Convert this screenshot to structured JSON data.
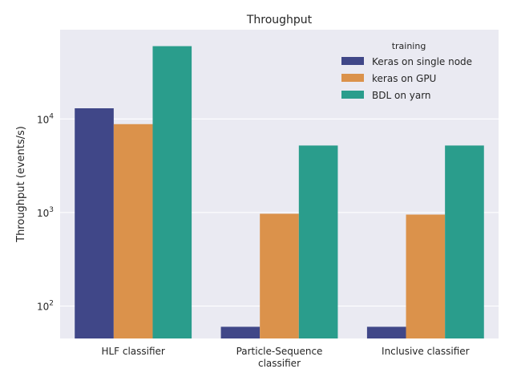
{
  "chart_data": {
    "type": "bar",
    "title": "Throughput",
    "xlabel": "",
    "ylabel": "Throughput (events/s)",
    "yscale": "log",
    "ylim": [
      45,
      90000
    ],
    "yticks": [
      {
        "value": 100,
        "base": "10",
        "exp": "2"
      },
      {
        "value": 1000,
        "base": "10",
        "exp": "3"
      },
      {
        "value": 10000,
        "base": "10",
        "exp": "4"
      }
    ],
    "categories": [
      [
        "HLF classifier"
      ],
      [
        "Particle-Sequence",
        "classifier"
      ],
      [
        "Inclusive classifier"
      ]
    ],
    "legend": {
      "title": "training",
      "placement": "upper-right"
    },
    "grid": true,
    "series": [
      {
        "name": "Keras on single node",
        "color": "#404788",
        "values": [
          13000,
          60,
          60
        ]
      },
      {
        "name": "keras on GPU",
        "color": "#db924b",
        "values": [
          8800,
          970,
          950
        ]
      },
      {
        "name": "BDL on yarn",
        "color": "#2a9d8c",
        "values": [
          60000,
          5200,
          5200
        ]
      }
    ]
  }
}
